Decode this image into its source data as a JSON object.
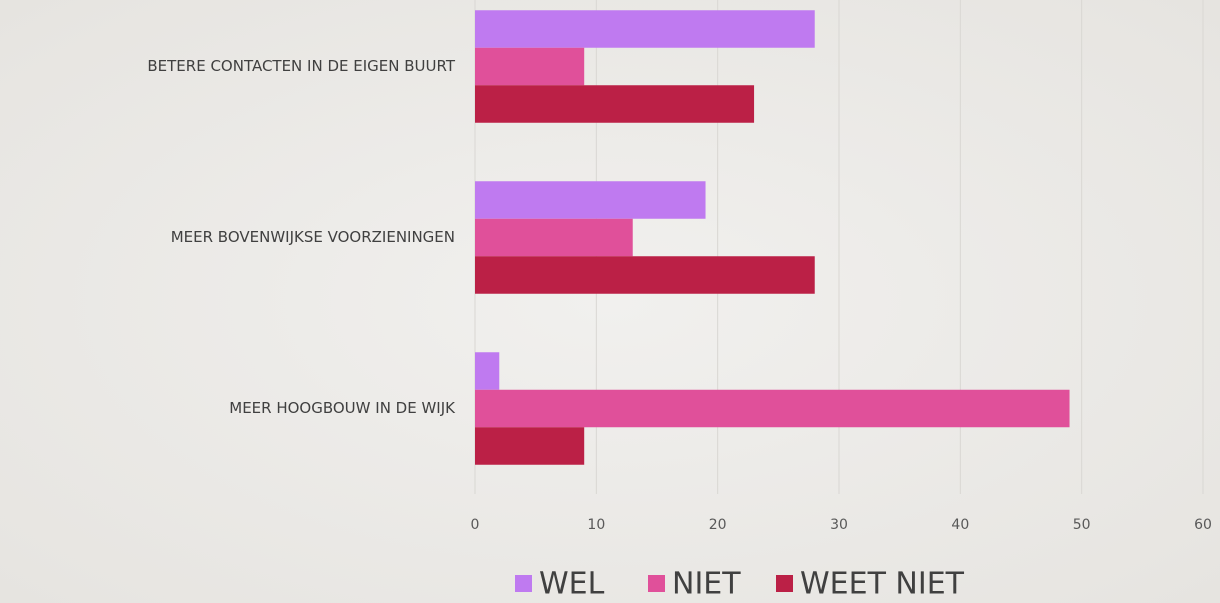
{
  "chart_data": {
    "type": "barh",
    "categories": [
      "BETERE CONTACTEN IN DE EIGEN BUURT",
      "MEER BOVENWIJKSE VOORZIENINGEN",
      "MEER HOOGBOUW IN DE WIJK"
    ],
    "series": [
      {
        "name": "WEL",
        "color": "#bf7af0",
        "values": [
          28,
          19,
          2
        ]
      },
      {
        "name": "NIET",
        "color": "#e0509a",
        "values": [
          9,
          13,
          49
        ]
      },
      {
        "name": "WEET NIET",
        "color": "#bb2046",
        "values": [
          23,
          28,
          9
        ]
      }
    ],
    "xlim": [
      0,
      60
    ],
    "xticks": [
      0,
      10,
      20,
      30,
      40,
      50,
      60
    ],
    "grid": true,
    "legend": "bottom"
  }
}
